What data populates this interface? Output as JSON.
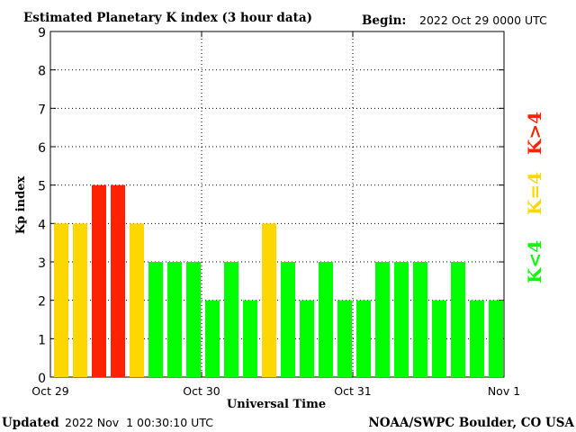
{
  "header": {
    "title": "Estimated Planetary K index (3 hour data)",
    "begin_label": "Begin:",
    "begin_value": "2022 Oct 29 0000 UTC"
  },
  "footer": {
    "updated_label": "Updated",
    "updated_value": "2022 Nov  1 00:30:10 UTC",
    "credit": "NOAA/SWPC Boulder, CO USA"
  },
  "legend": {
    "items": [
      {
        "label": "K<4",
        "color": "#00ff00"
      },
      {
        "label": "K=4",
        "color": "#ffd700"
      },
      {
        "label": "K>4",
        "color": "#ff2200"
      }
    ]
  },
  "chart_data": {
    "type": "bar",
    "ylabel": "Kp index",
    "xlabel": "Universal Time",
    "ylim": [
      0,
      9
    ],
    "yticks": [
      0,
      1,
      2,
      3,
      4,
      5,
      6,
      7,
      8,
      9
    ],
    "grid": true,
    "x_tick_labels": [
      "Oct 29",
      "Oct 30",
      "Oct 31",
      "Nov 1"
    ],
    "values": [
      4,
      4,
      5,
      5,
      4,
      3,
      3,
      3,
      2,
      3,
      2,
      4,
      3,
      2,
      3,
      2,
      2,
      3,
      3,
      3,
      2,
      3,
      2,
      2
    ],
    "colors": {
      "below": "#00ff00",
      "equal": "#ffd700",
      "above": "#ff2200"
    }
  }
}
